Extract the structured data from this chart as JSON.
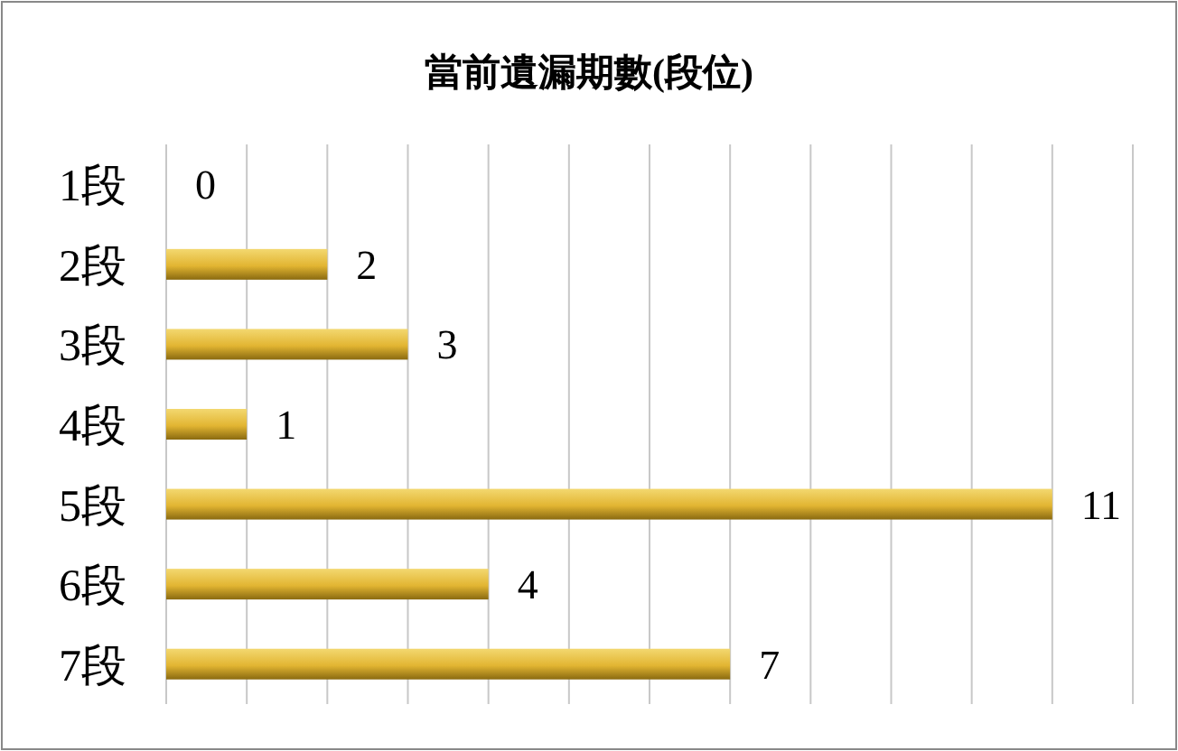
{
  "chart_data": {
    "type": "bar",
    "orientation": "horizontal",
    "title": "當前遺漏期數(段位)",
    "categories": [
      "1段",
      "2段",
      "3段",
      "4段",
      "5段",
      "6段",
      "7段"
    ],
    "values": [
      0,
      2,
      3,
      1,
      11,
      4,
      7
    ],
    "color": "#e2b532",
    "xlim": [
      0,
      12
    ],
    "xticks": [
      {
        "value": 0,
        "label": null
      },
      {
        "value": 1,
        "label": null
      },
      {
        "value": 2,
        "label": null
      },
      {
        "value": 3,
        "label": null
      },
      {
        "value": 4,
        "label": null
      },
      {
        "value": 5,
        "label": null
      },
      {
        "value": 6,
        "label": null
      },
      {
        "value": 7,
        "label": null
      },
      {
        "value": 8,
        "label": null
      },
      {
        "value": 9,
        "label": null
      },
      {
        "value": 10,
        "label": null
      },
      {
        "value": 11,
        "label": null
      },
      {
        "value": 12,
        "label": null
      }
    ],
    "grid": "x",
    "tick_labels": "y",
    "data_labels": true
  }
}
